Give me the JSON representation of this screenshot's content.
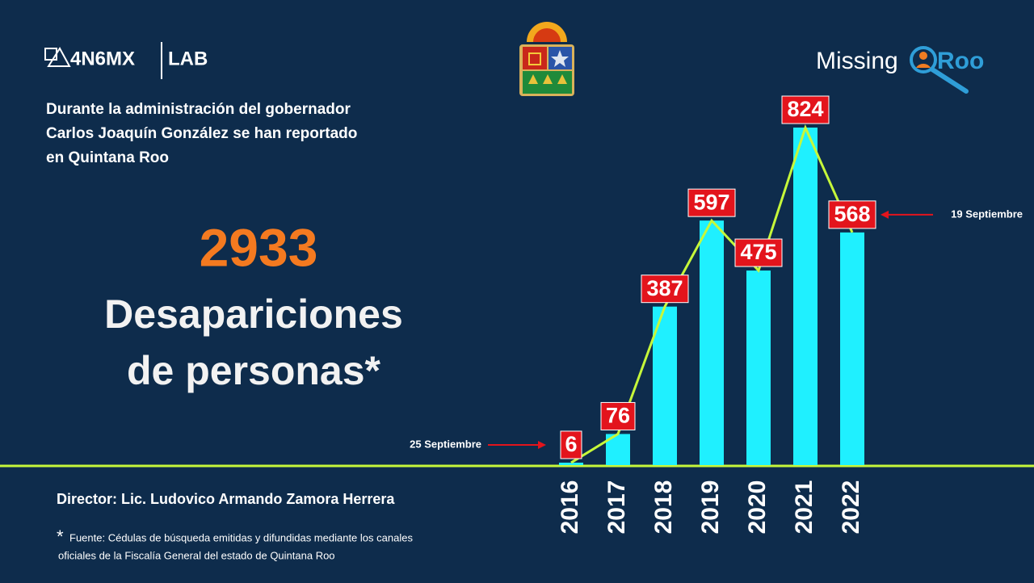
{
  "header": {
    "logo_left": "4N6MX",
    "logo_left_suffix": "LAB",
    "logo_right": "Missing",
    "logo_right_suffix": "Roo"
  },
  "intro": [
    "Durante la administración del gobernador",
    "Carlos Joaquín González se han reportado",
    "en Quintana Roo"
  ],
  "total": 2933,
  "headline": [
    "Desapariciones",
    "de personas*"
  ],
  "director": "Director: Lic. Ludovico Armando Zamora Herrera",
  "footnote": [
    "Fuente: Cédulas de búsqueda emitidas y difundidas mediante los canales",
    "oficiales de la Fiscalía General del estado de Quintana Roo"
  ],
  "chart_data": {
    "type": "bar",
    "categories": [
      "2016",
      "2017",
      "2018",
      "2019",
      "2020",
      "2021",
      "2022"
    ],
    "values": [
      6,
      76,
      387,
      597,
      475,
      824,
      568
    ],
    "color": "#1ff0ff",
    "line": true,
    "line_color": "#c6f73a",
    "label_color": "#e3141c",
    "ylim": [
      0,
      824
    ],
    "annotations": [
      "25 Septiembre",
      "19 Septiembre"
    ]
  }
}
